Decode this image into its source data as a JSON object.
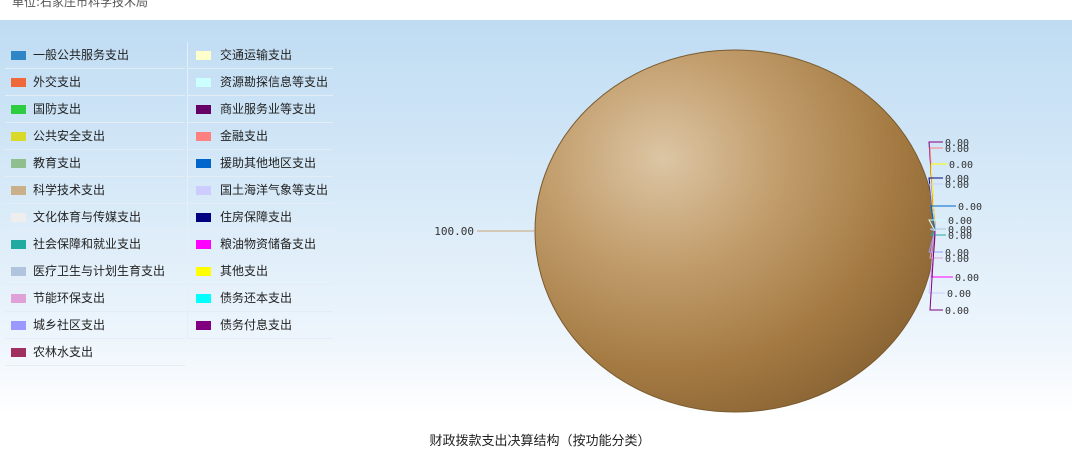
{
  "page": {
    "org_title": "单位:石家庄市科学技术局",
    "caption": "财政拨款支出决算结构（按功能分类）"
  },
  "chart_data": {
    "type": "pie",
    "title": "财政拨款支出决算结构（按功能分类）",
    "legend_position": "left",
    "legend": [
      {
        "name": "一般公共服务支出",
        "color": "#2f86c7"
      },
      {
        "name": "外交支出",
        "color": "#ef6a3a"
      },
      {
        "name": "国防支出",
        "color": "#2ecc40"
      },
      {
        "name": "公共安全支出",
        "color": "#d9d92a"
      },
      {
        "name": "教育支出",
        "color": "#8fbf8f"
      },
      {
        "name": "科学技术支出",
        "color": "#c9b08a"
      },
      {
        "name": "文化体育与传媒支出",
        "color": "#eeeeee"
      },
      {
        "name": "社会保障和就业支出",
        "color": "#20aaa0"
      },
      {
        "name": "医疗卫生与计划生育支出",
        "color": "#b0c4de"
      },
      {
        "name": "节能环保支出",
        "color": "#e0a0d8"
      },
      {
        "name": "城乡社区支出",
        "color": "#9999ff"
      },
      {
        "name": "农林水支出",
        "color": "#a03060"
      },
      {
        "name": "交通运输支出",
        "color": "#ffffcc"
      },
      {
        "name": "资源勘探信息等支出",
        "color": "#ccffff"
      },
      {
        "name": "商业服务业等支出",
        "color": "#660066"
      },
      {
        "name": "金融支出",
        "color": "#ff8080"
      },
      {
        "name": "援助其他地区支出",
        "color": "#0066cc"
      },
      {
        "name": "国土海洋气象等支出",
        "color": "#ccccff"
      },
      {
        "name": "住房保障支出",
        "color": "#000080"
      },
      {
        "name": "粮油物资储备支出",
        "color": "#ff00ff"
      },
      {
        "name": "其他支出",
        "color": "#ffff00"
      },
      {
        "name": "债务还本支出",
        "color": "#00ffff"
      },
      {
        "name": "债务付息支出",
        "color": "#800080"
      }
    ],
    "slices": [
      {
        "name": "科学技术支出",
        "value": 100.0,
        "label": "100.00",
        "color": "#a98149"
      }
    ],
    "zero_labels": [
      "0.00",
      "0.00",
      "0.00",
      "0.00",
      "0.00",
      "0.00",
      "0.00",
      "0.00",
      "0.00",
      "0.00",
      "0.00",
      "0.00",
      "0.00",
      "0.00"
    ],
    "zero_line_colors": [
      "#800080",
      "#ff8080",
      "#ffff00",
      "#000080",
      "#ccccff",
      "#0066cc",
      "#ccffff",
      "#b0c4de",
      "#20aaa0",
      "#9999ff",
      "#e0a0d8",
      "#ff00ff",
      "#ccccff",
      "#800080"
    ]
  }
}
